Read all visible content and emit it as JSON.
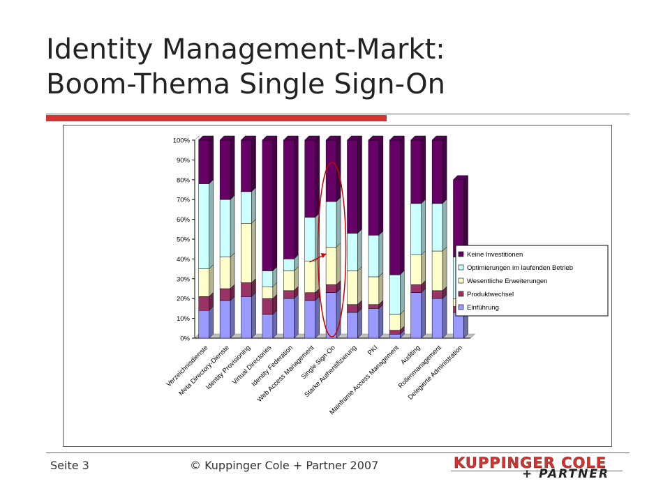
{
  "slide": {
    "title_line1": "Identity Management-Markt:",
    "title_line2": "Boom-Thema Single Sign-On",
    "footer_page": "Seite 3",
    "footer_copyright": "© Kuppinger Cole + Partner 2007",
    "logo_main": "KUPPINGER COLE",
    "logo_sub": "+ PARTNER",
    "accent_color": "#d8322e"
  },
  "chart_data": {
    "type": "bar",
    "stacked": true,
    "percent_stacked": true,
    "three_d": true,
    "categories": [
      "Verzeichnisdienste",
      "Meta Directory-Dienste",
      "Identity Provisioning",
      "Virtual Directories",
      "Identity Federation",
      "Web Access Management",
      "Single Sign-On",
      "Starke Authentifizierung",
      "PKI",
      "Mainframe Access Management",
      "Auditing",
      "Rollenmanagement",
      "Delegierte Administration"
    ],
    "series": [
      {
        "name": "Einführung",
        "color": "#9999ff",
        "values": [
          14,
          19,
          21,
          12,
          20,
          19,
          23,
          13,
          15,
          2,
          23,
          20,
          13
        ]
      },
      {
        "name": "Produktwechsel",
        "color": "#993366",
        "values": [
          7,
          6,
          7,
          8,
          4,
          4,
          4,
          4,
          2,
          2,
          4,
          4,
          3
        ]
      },
      {
        "name": "Wesentliche Erweiterungen",
        "color": "#ffffcc",
        "values": [
          14,
          16,
          30,
          6,
          10,
          16,
          19,
          17,
          14,
          8,
          15,
          20,
          4
        ]
      },
      {
        "name": "Optimierungen im laufenden Betrieb",
        "color": "#ccffff",
        "values": [
          43,
          29,
          16,
          8,
          6,
          22,
          23,
          19,
          21,
          20,
          26,
          24,
          21
        ]
      },
      {
        "name": "Keine Investitionen",
        "color": "#660066",
        "values": [
          22,
          30,
          26,
          66,
          60,
          39,
          31,
          47,
          48,
          68,
          32,
          32,
          39
        ]
      }
    ],
    "y_ticks": [
      "0%",
      "10%",
      "20%",
      "30%",
      "40%",
      "50%",
      "60%",
      "70%",
      "80%",
      "90%",
      "100%"
    ],
    "ylim": [
      0,
      100
    ],
    "legend_position": "right",
    "highlight_category": "Single Sign-On",
    "highlight_color": "#cc0000",
    "grid": false
  }
}
